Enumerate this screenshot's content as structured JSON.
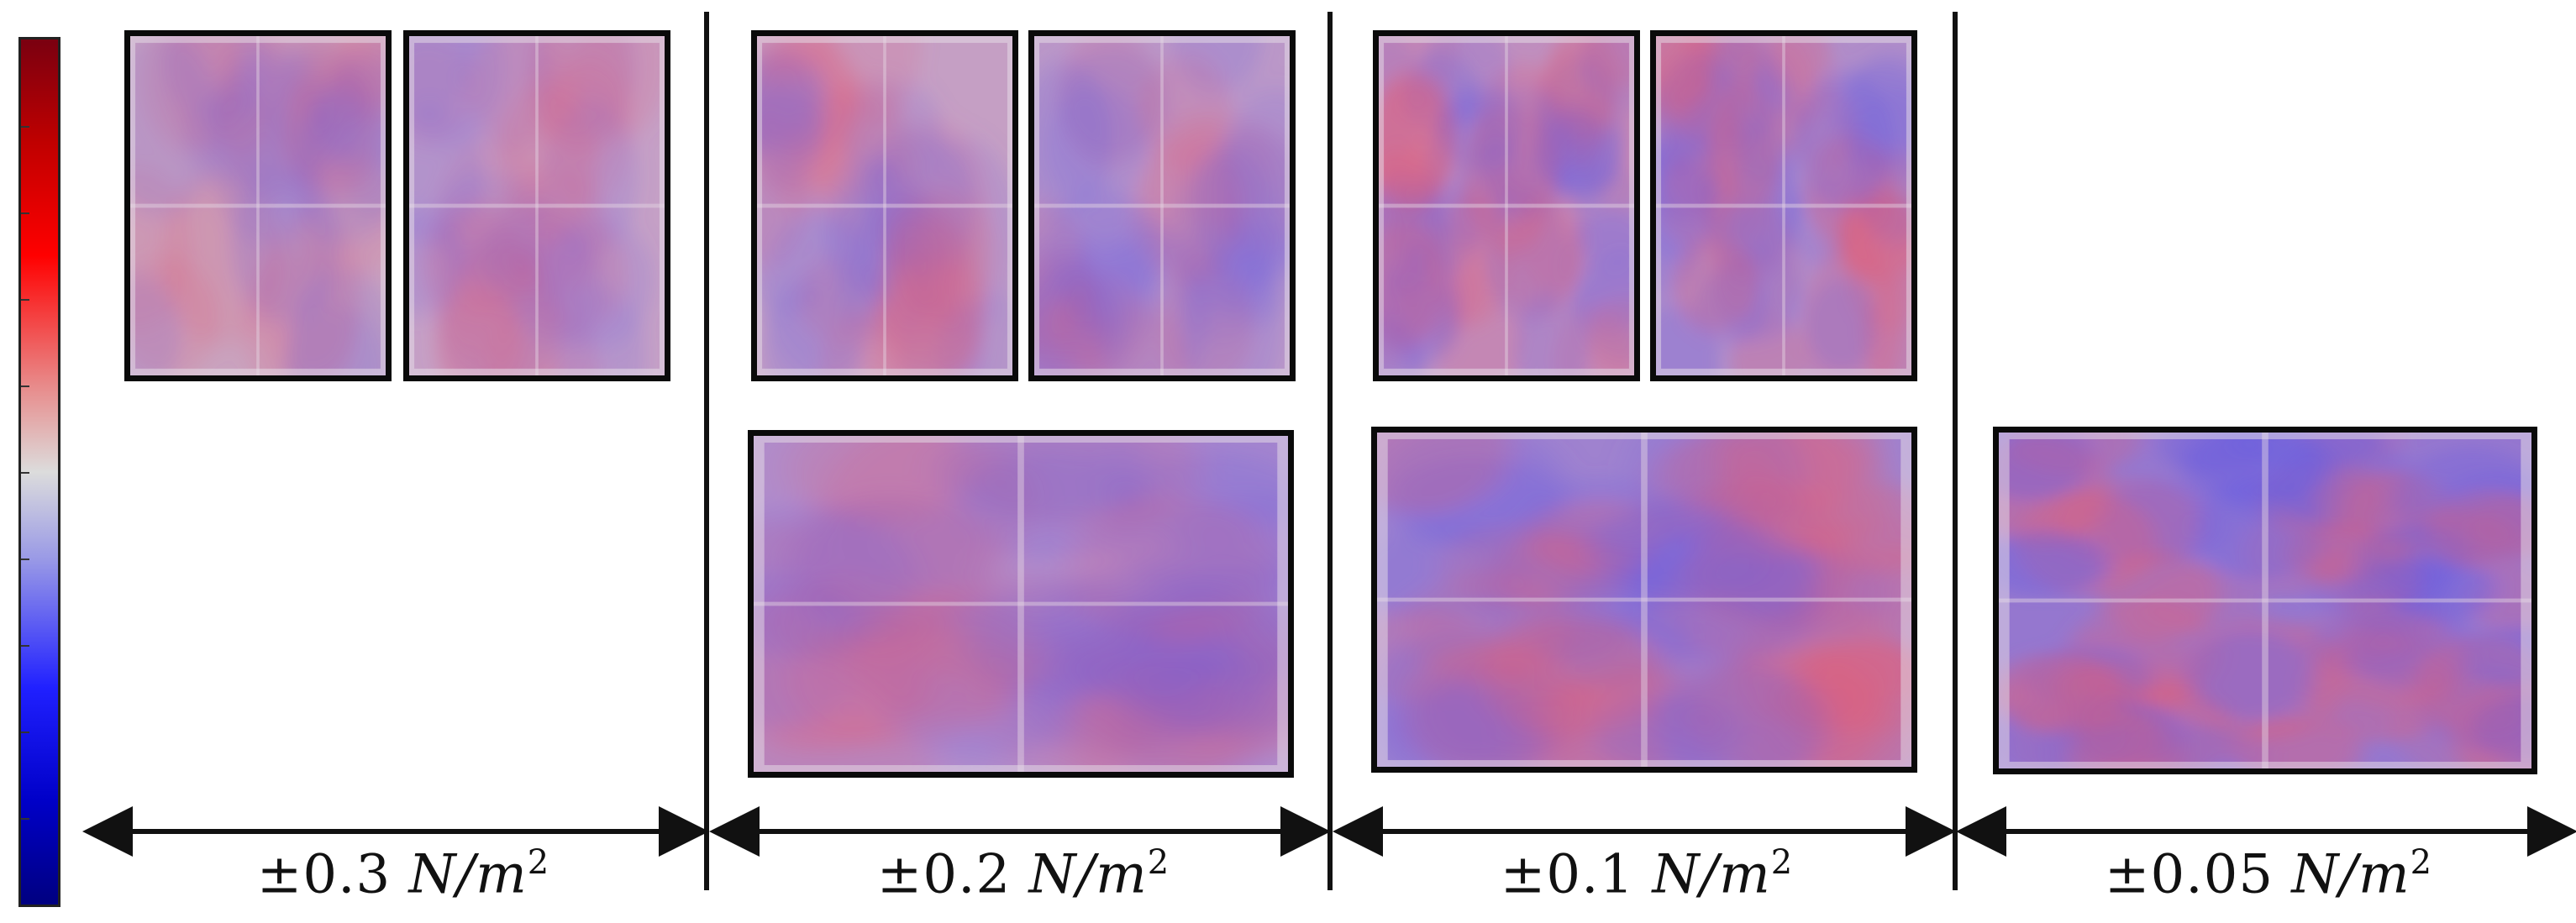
{
  "colorbar": {
    "colors": [
      "#7a0010",
      "#ff0000",
      "#dcdcdc",
      "#2020ff",
      "#000080"
    ],
    "tick_count": 10
  },
  "groups": [
    {
      "id": "g03",
      "label_pm": "±0.3",
      "label_unit": "N/m",
      "label_exp": "2",
      "tint": "#c9a3bf",
      "noise": 0.15
    },
    {
      "id": "g02",
      "label_pm": "±0.2",
      "label_unit": "N/m",
      "label_exp": "2",
      "tint": "#b996c5",
      "noise": 0.25
    },
    {
      "id": "g01",
      "label_pm": "±0.1",
      "label_unit": "N/m",
      "label_exp": "2",
      "tint": "#a584cd",
      "noise": 0.45
    },
    {
      "id": "g005",
      "label_pm": "±0.05",
      "label_unit": "N/m",
      "label_exp": "2",
      "tint": "#8f6fd0",
      "noise": 0.7
    }
  ]
}
